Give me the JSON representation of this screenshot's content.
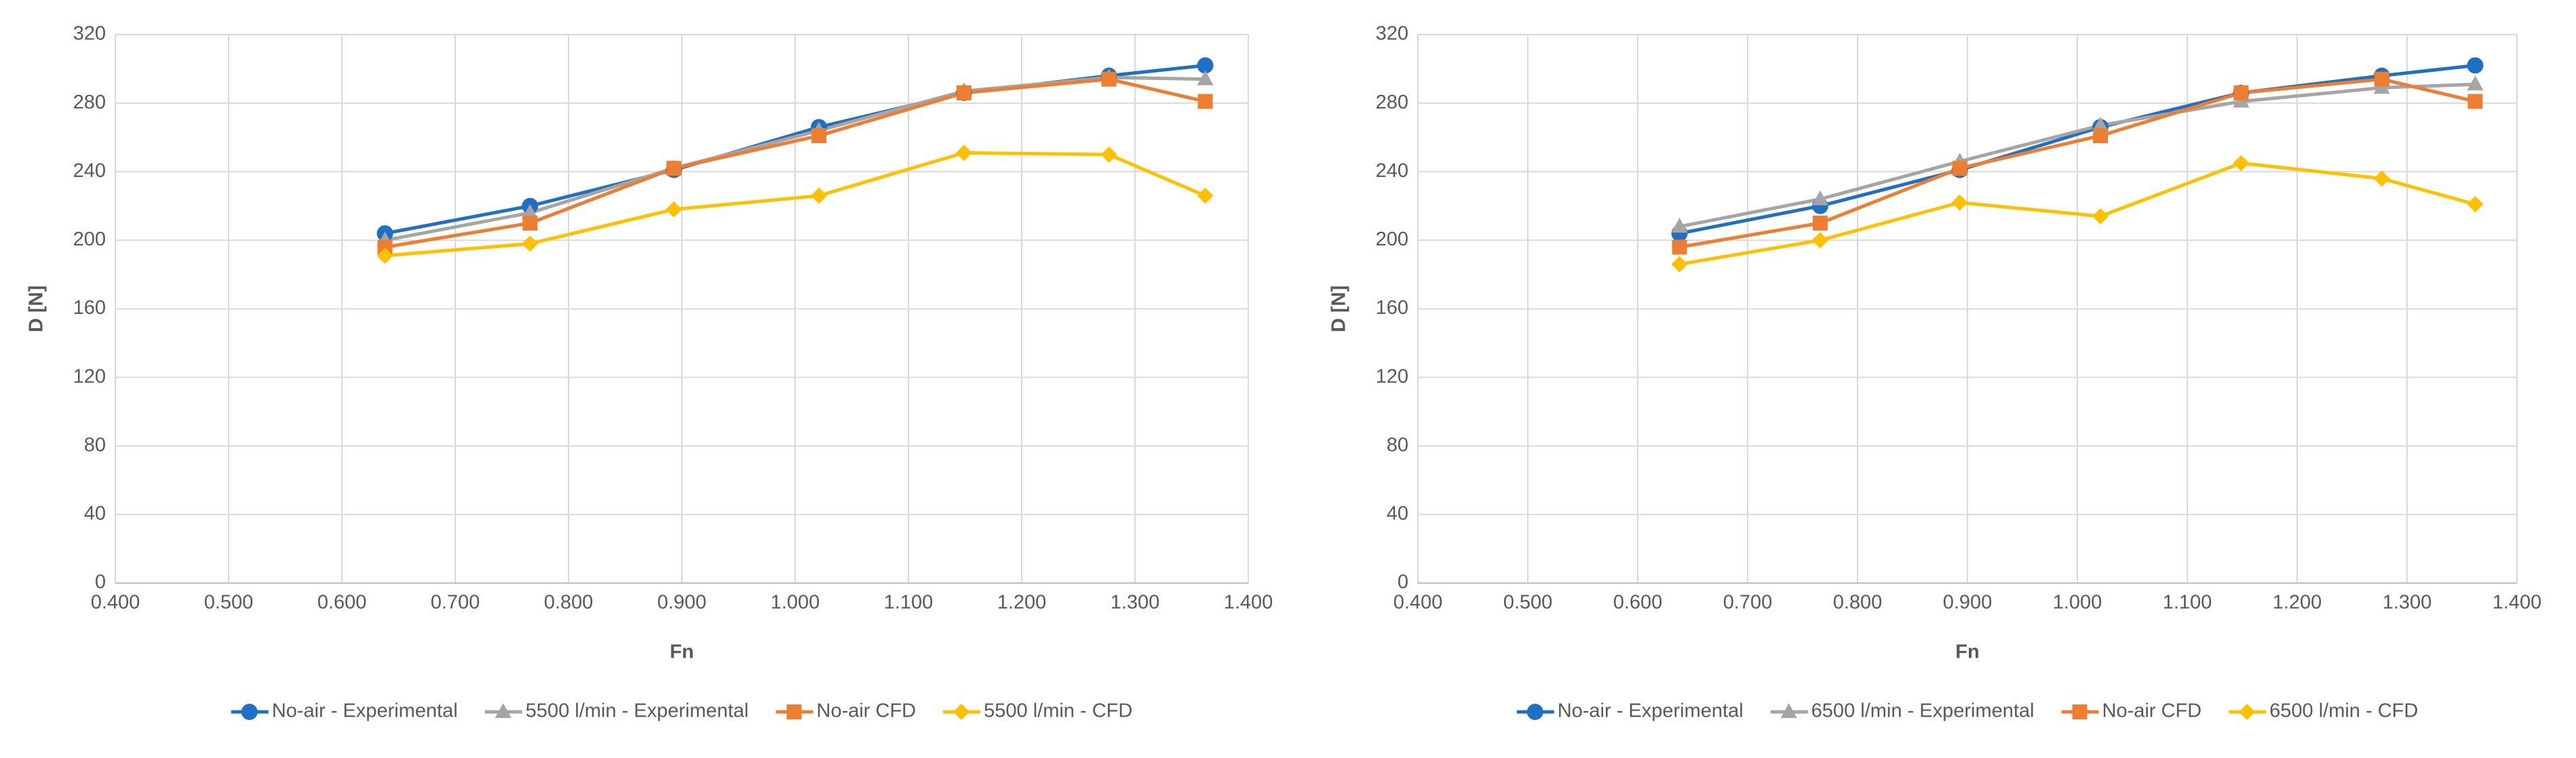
{
  "chart_data": [
    {
      "type": "line",
      "x_label": "Fn",
      "y_label": "D [N]",
      "x": [
        0.638,
        0.766,
        0.893,
        1.021,
        1.149,
        1.277,
        1.362
      ],
      "xlim": [
        0.4,
        1.4
      ],
      "xticks": [
        {
          "value": 0.4,
          "label": "0.400"
        },
        {
          "value": 0.5,
          "label": "0.500"
        },
        {
          "value": 0.6,
          "label": "0.600"
        },
        {
          "value": 0.7,
          "label": "0.700"
        },
        {
          "value": 0.8,
          "label": "0.800"
        },
        {
          "value": 0.9,
          "label": "0.900"
        },
        {
          "value": 1.0,
          "label": "1.000"
        },
        {
          "value": 1.1,
          "label": "1.100"
        },
        {
          "value": 1.2,
          "label": "1.200"
        },
        {
          "value": 1.3,
          "label": "1.300"
        },
        {
          "value": 1.4,
          "label": "1.400"
        }
      ],
      "ylim": [
        0,
        320
      ],
      "yticks": [
        0,
        40,
        80,
        120,
        160,
        200,
        240,
        280,
        320
      ],
      "grid": true,
      "legend": "bottom",
      "series": [
        {
          "name": "No-air - Experimental",
          "color": "#1f6fc5",
          "marker": "circle",
          "values": [
            204,
            220,
            241,
            266,
            286,
            296,
            302
          ]
        },
        {
          "name": "5500 l/min - Experimental",
          "color": "#a5a5a5",
          "marker": "triangle",
          "values": [
            200,
            216,
            242,
            264,
            287,
            295,
            294
          ]
        },
        {
          "name": "No-air CFD",
          "color": "#ed7d31",
          "marker": "square",
          "values": [
            196,
            210,
            242,
            261,
            286,
            294,
            281
          ]
        },
        {
          "name": "5500 l/min - CFD",
          "color": "#ffc000",
          "marker": "diamond",
          "values": [
            191,
            198,
            218,
            226,
            251,
            250,
            226
          ]
        }
      ]
    },
    {
      "type": "line",
      "x_label": "Fn",
      "y_label": "D [N]",
      "x": [
        0.638,
        0.766,
        0.893,
        1.021,
        1.149,
        1.277,
        1.362
      ],
      "xlim": [
        0.4,
        1.4
      ],
      "xticks": [
        {
          "value": 0.4,
          "label": "0.400"
        },
        {
          "value": 0.5,
          "label": "0.500"
        },
        {
          "value": 0.6,
          "label": "0.600"
        },
        {
          "value": 0.7,
          "label": "0.700"
        },
        {
          "value": 0.8,
          "label": "0.800"
        },
        {
          "value": 0.9,
          "label": "0.900"
        },
        {
          "value": 1.0,
          "label": "1.000"
        },
        {
          "value": 1.1,
          "label": "1.100"
        },
        {
          "value": 1.2,
          "label": "1.200"
        },
        {
          "value": 1.3,
          "label": "1.300"
        },
        {
          "value": 1.4,
          "label": "1.400"
        }
      ],
      "ylim": [
        0,
        320
      ],
      "yticks": [
        0,
        40,
        80,
        120,
        160,
        200,
        240,
        280,
        320
      ],
      "grid": true,
      "legend": "bottom",
      "series": [
        {
          "name": "No-air - Experimental",
          "color": "#1f6fc5",
          "marker": "circle",
          "values": [
            204,
            220,
            241,
            266,
            286,
            296,
            302
          ]
        },
        {
          "name": "6500 l/min - Experimental",
          "color": "#a5a5a5",
          "marker": "triangle",
          "values": [
            208,
            224,
            246,
            267,
            281,
            289,
            291
          ]
        },
        {
          "name": "No-air CFD",
          "color": "#ed7d31",
          "marker": "square",
          "values": [
            196,
            210,
            242,
            261,
            286,
            294,
            281
          ]
        },
        {
          "name": "6500 l/min - CFD",
          "color": "#ffc000",
          "marker": "diamond",
          "values": [
            186,
            200,
            222,
            214,
            245,
            236,
            221
          ]
        }
      ]
    }
  ]
}
